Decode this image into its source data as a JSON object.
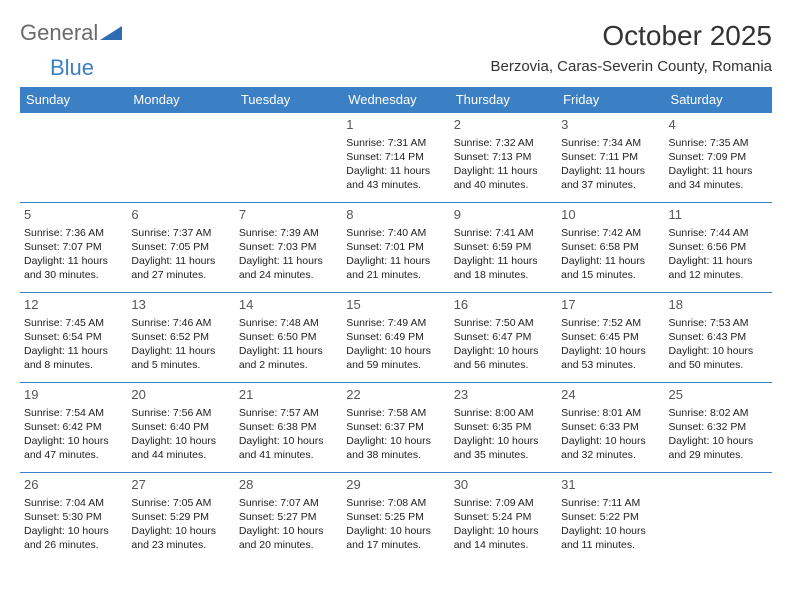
{
  "logo": {
    "part1": "General",
    "part2": "Blue"
  },
  "title": "October 2025",
  "location": "Berzovia, Caras-Severin County, Romania",
  "colors": {
    "header_bg": "#3b7fc4",
    "header_text": "#ffffff",
    "border": "#3b7fc4",
    "text": "#222222",
    "daynum": "#555555"
  },
  "weekdays": [
    "Sunday",
    "Monday",
    "Tuesday",
    "Wednesday",
    "Thursday",
    "Friday",
    "Saturday"
  ],
  "weeks": [
    [
      null,
      null,
      null,
      {
        "n": "1",
        "sr": "Sunrise: 7:31 AM",
        "ss": "Sunset: 7:14 PM",
        "d1": "Daylight: 11 hours",
        "d2": "and 43 minutes."
      },
      {
        "n": "2",
        "sr": "Sunrise: 7:32 AM",
        "ss": "Sunset: 7:13 PM",
        "d1": "Daylight: 11 hours",
        "d2": "and 40 minutes."
      },
      {
        "n": "3",
        "sr": "Sunrise: 7:34 AM",
        "ss": "Sunset: 7:11 PM",
        "d1": "Daylight: 11 hours",
        "d2": "and 37 minutes."
      },
      {
        "n": "4",
        "sr": "Sunrise: 7:35 AM",
        "ss": "Sunset: 7:09 PM",
        "d1": "Daylight: 11 hours",
        "d2": "and 34 minutes."
      }
    ],
    [
      {
        "n": "5",
        "sr": "Sunrise: 7:36 AM",
        "ss": "Sunset: 7:07 PM",
        "d1": "Daylight: 11 hours",
        "d2": "and 30 minutes."
      },
      {
        "n": "6",
        "sr": "Sunrise: 7:37 AM",
        "ss": "Sunset: 7:05 PM",
        "d1": "Daylight: 11 hours",
        "d2": "and 27 minutes."
      },
      {
        "n": "7",
        "sr": "Sunrise: 7:39 AM",
        "ss": "Sunset: 7:03 PM",
        "d1": "Daylight: 11 hours",
        "d2": "and 24 minutes."
      },
      {
        "n": "8",
        "sr": "Sunrise: 7:40 AM",
        "ss": "Sunset: 7:01 PM",
        "d1": "Daylight: 11 hours",
        "d2": "and 21 minutes."
      },
      {
        "n": "9",
        "sr": "Sunrise: 7:41 AM",
        "ss": "Sunset: 6:59 PM",
        "d1": "Daylight: 11 hours",
        "d2": "and 18 minutes."
      },
      {
        "n": "10",
        "sr": "Sunrise: 7:42 AM",
        "ss": "Sunset: 6:58 PM",
        "d1": "Daylight: 11 hours",
        "d2": "and 15 minutes."
      },
      {
        "n": "11",
        "sr": "Sunrise: 7:44 AM",
        "ss": "Sunset: 6:56 PM",
        "d1": "Daylight: 11 hours",
        "d2": "and 12 minutes."
      }
    ],
    [
      {
        "n": "12",
        "sr": "Sunrise: 7:45 AM",
        "ss": "Sunset: 6:54 PM",
        "d1": "Daylight: 11 hours",
        "d2": "and 8 minutes."
      },
      {
        "n": "13",
        "sr": "Sunrise: 7:46 AM",
        "ss": "Sunset: 6:52 PM",
        "d1": "Daylight: 11 hours",
        "d2": "and 5 minutes."
      },
      {
        "n": "14",
        "sr": "Sunrise: 7:48 AM",
        "ss": "Sunset: 6:50 PM",
        "d1": "Daylight: 11 hours",
        "d2": "and 2 minutes."
      },
      {
        "n": "15",
        "sr": "Sunrise: 7:49 AM",
        "ss": "Sunset: 6:49 PM",
        "d1": "Daylight: 10 hours",
        "d2": "and 59 minutes."
      },
      {
        "n": "16",
        "sr": "Sunrise: 7:50 AM",
        "ss": "Sunset: 6:47 PM",
        "d1": "Daylight: 10 hours",
        "d2": "and 56 minutes."
      },
      {
        "n": "17",
        "sr": "Sunrise: 7:52 AM",
        "ss": "Sunset: 6:45 PM",
        "d1": "Daylight: 10 hours",
        "d2": "and 53 minutes."
      },
      {
        "n": "18",
        "sr": "Sunrise: 7:53 AM",
        "ss": "Sunset: 6:43 PM",
        "d1": "Daylight: 10 hours",
        "d2": "and 50 minutes."
      }
    ],
    [
      {
        "n": "19",
        "sr": "Sunrise: 7:54 AM",
        "ss": "Sunset: 6:42 PM",
        "d1": "Daylight: 10 hours",
        "d2": "and 47 minutes."
      },
      {
        "n": "20",
        "sr": "Sunrise: 7:56 AM",
        "ss": "Sunset: 6:40 PM",
        "d1": "Daylight: 10 hours",
        "d2": "and 44 minutes."
      },
      {
        "n": "21",
        "sr": "Sunrise: 7:57 AM",
        "ss": "Sunset: 6:38 PM",
        "d1": "Daylight: 10 hours",
        "d2": "and 41 minutes."
      },
      {
        "n": "22",
        "sr": "Sunrise: 7:58 AM",
        "ss": "Sunset: 6:37 PM",
        "d1": "Daylight: 10 hours",
        "d2": "and 38 minutes."
      },
      {
        "n": "23",
        "sr": "Sunrise: 8:00 AM",
        "ss": "Sunset: 6:35 PM",
        "d1": "Daylight: 10 hours",
        "d2": "and 35 minutes."
      },
      {
        "n": "24",
        "sr": "Sunrise: 8:01 AM",
        "ss": "Sunset: 6:33 PM",
        "d1": "Daylight: 10 hours",
        "d2": "and 32 minutes."
      },
      {
        "n": "25",
        "sr": "Sunrise: 8:02 AM",
        "ss": "Sunset: 6:32 PM",
        "d1": "Daylight: 10 hours",
        "d2": "and 29 minutes."
      }
    ],
    [
      {
        "n": "26",
        "sr": "Sunrise: 7:04 AM",
        "ss": "Sunset: 5:30 PM",
        "d1": "Daylight: 10 hours",
        "d2": "and 26 minutes."
      },
      {
        "n": "27",
        "sr": "Sunrise: 7:05 AM",
        "ss": "Sunset: 5:29 PM",
        "d1": "Daylight: 10 hours",
        "d2": "and 23 minutes."
      },
      {
        "n": "28",
        "sr": "Sunrise: 7:07 AM",
        "ss": "Sunset: 5:27 PM",
        "d1": "Daylight: 10 hours",
        "d2": "and 20 minutes."
      },
      {
        "n": "29",
        "sr": "Sunrise: 7:08 AM",
        "ss": "Sunset: 5:25 PM",
        "d1": "Daylight: 10 hours",
        "d2": "and 17 minutes."
      },
      {
        "n": "30",
        "sr": "Sunrise: 7:09 AM",
        "ss": "Sunset: 5:24 PM",
        "d1": "Daylight: 10 hours",
        "d2": "and 14 minutes."
      },
      {
        "n": "31",
        "sr": "Sunrise: 7:11 AM",
        "ss": "Sunset: 5:22 PM",
        "d1": "Daylight: 10 hours",
        "d2": "and 11 minutes."
      },
      null
    ]
  ]
}
